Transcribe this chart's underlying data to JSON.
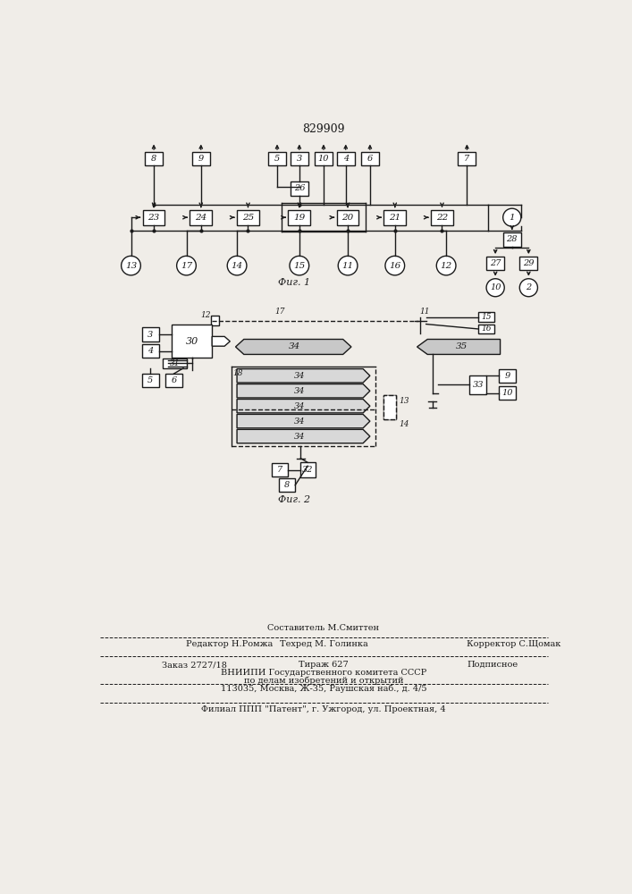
{
  "title": "829909",
  "fig1_caption": "Фиг. 1",
  "fig2_caption": "Фиг. 2",
  "bg_color": "#f0ede8",
  "line_color": "#1a1a1a",
  "box_color": "#ffffff",
  "footer_sestavitel": "Составитель М.Смиттен",
  "footer_redaktor": "Редактор Н.Ромжа",
  "footer_tehred": "Техред М. Голинка",
  "footer_korrektor": "Корректор С.Щомак",
  "footer_zakaz": "Заказ 2727/18",
  "footer_tirazh": "Тираж 627",
  "footer_podpisnoe": "Подписное",
  "footer_vniip1": "ВНИИПИ Государственного комитета СССР",
  "footer_vniip2": "по делам изобретений и открытий",
  "footer_addr": "113035, Москва, Ж-35, Раушская наб., д. 4/5",
  "footer_filial": "Филиал ППП \"Патент\", г. Ужгород, ул. Проектная, 4"
}
